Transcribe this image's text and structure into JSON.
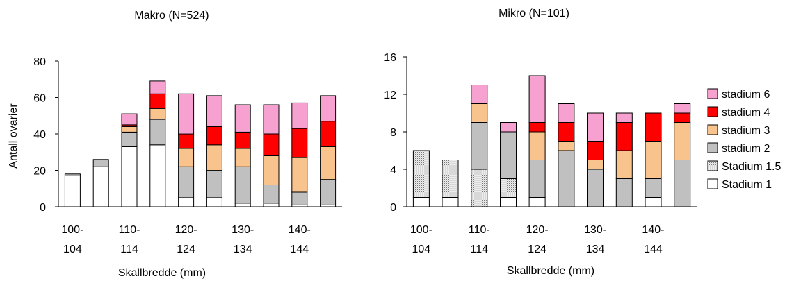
{
  "chart_data": [
    {
      "type": "bar",
      "stacked": true,
      "title": "Makro (N=524)",
      "xlabel": "Skallbredde (mm)",
      "ylabel": "Antall ovarier",
      "ylim": [
        0,
        80
      ],
      "yticks": [
        0,
        20,
        40,
        60,
        80
      ],
      "grid": false,
      "categories": [
        "100-104",
        "105-109",
        "110-114",
        "115-119",
        "120-124",
        "125-129",
        "130-134",
        "135-139",
        "140-144",
        "145-149"
      ],
      "category_labels_shown": [
        {
          "top": "100-",
          "bottom": "104"
        },
        {
          "top": "",
          "bottom": ""
        },
        {
          "top": "110-",
          "bottom": "114"
        },
        {
          "top": "",
          "bottom": ""
        },
        {
          "top": "120-",
          "bottom": "124"
        },
        {
          "top": "",
          "bottom": ""
        },
        {
          "top": "130-",
          "bottom": "134"
        },
        {
          "top": "",
          "bottom": ""
        },
        {
          "top": "140-",
          "bottom": "144"
        },
        {
          "top": "",
          "bottom": ""
        }
      ],
      "series": [
        {
          "name": "Stadium 1",
          "values": [
            17,
            22,
            33,
            34,
            5,
            5,
            2,
            2,
            1,
            1
          ]
        },
        {
          "name": "Stadium 1.5",
          "values": [
            0,
            0,
            0,
            0,
            0,
            0,
            0,
            0,
            0,
            0
          ]
        },
        {
          "name": "stadium 2",
          "values": [
            1,
            4,
            8,
            14,
            17,
            15,
            20,
            10,
            7,
            14
          ]
        },
        {
          "name": "stadium 3",
          "values": [
            0,
            0,
            3,
            6,
            10,
            14,
            10,
            16,
            19,
            18
          ]
        },
        {
          "name": "stadium 4",
          "values": [
            0,
            0,
            1,
            8,
            8,
            10,
            9,
            12,
            16,
            14
          ]
        },
        {
          "name": "stadium 6",
          "values": [
            0,
            0,
            6,
            7,
            22,
            17,
            15,
            16,
            14,
            14
          ]
        }
      ]
    },
    {
      "type": "bar",
      "stacked": true,
      "title": "Mikro (N=101)",
      "xlabel": "Skallbredde (mm)",
      "ylabel": "",
      "ylim": [
        0,
        16
      ],
      "yticks": [
        0,
        4,
        8,
        12,
        16
      ],
      "grid": false,
      "legend_position": "right",
      "categories": [
        "100-104",
        "105-109",
        "110-114",
        "115-119",
        "120-124",
        "125-129",
        "130-134",
        "135-139",
        "140-144",
        "145-149"
      ],
      "category_labels_shown": [
        {
          "top": "100-",
          "bottom": "104"
        },
        {
          "top": "",
          "bottom": ""
        },
        {
          "top": "110-",
          "bottom": "114"
        },
        {
          "top": "",
          "bottom": ""
        },
        {
          "top": "120-",
          "bottom": "124"
        },
        {
          "top": "",
          "bottom": ""
        },
        {
          "top": "130-",
          "bottom": "134"
        },
        {
          "top": "",
          "bottom": ""
        },
        {
          "top": "140-",
          "bottom": "144"
        },
        {
          "top": "",
          "bottom": ""
        }
      ],
      "series": [
        {
          "name": "Stadium 1",
          "values": [
            1,
            1,
            0,
            1,
            1,
            0,
            0,
            0,
            1,
            0
          ]
        },
        {
          "name": "Stadium 1.5",
          "values": [
            5,
            4,
            4,
            2,
            0,
            0,
            0,
            0,
            0,
            0
          ]
        },
        {
          "name": "stadium 2",
          "values": [
            0,
            0,
            5,
            5,
            4,
            6,
            4,
            3,
            2,
            5
          ]
        },
        {
          "name": "stadium 3",
          "values": [
            0,
            0,
            2,
            0,
            3,
            1,
            1,
            3,
            4,
            4
          ]
        },
        {
          "name": "stadium 4",
          "values": [
            0,
            0,
            0,
            0,
            1,
            2,
            2,
            3,
            3,
            1
          ]
        },
        {
          "name": "stadium 6",
          "values": [
            0,
            0,
            2,
            1,
            5,
            2,
            3,
            1,
            0,
            1
          ]
        }
      ]
    }
  ],
  "legend": {
    "items": [
      {
        "label": "stadium 6",
        "series": "stadium 6"
      },
      {
        "label": "stadium 4",
        "series": "stadium 4"
      },
      {
        "label": "stadium 3",
        "series": "stadium 3"
      },
      {
        "label": "stadium 2",
        "series": "stadium 2"
      },
      {
        "label": "Stadium 1.5",
        "series": "Stadium 1.5"
      },
      {
        "label": "Stadium 1",
        "series": "Stadium 1"
      }
    ]
  },
  "colors": {
    "Stadium 1": "#ffffff",
    "Stadium 1.5": "#ececec",
    "stadium 2": "#c0c0c0",
    "stadium 3": "#f9c38e",
    "stadium 4": "#ff0000",
    "stadium 6": "#f7a1d1",
    "outline": "#000000"
  },
  "patterns": {
    "Stadium 1.5": "dotted"
  }
}
